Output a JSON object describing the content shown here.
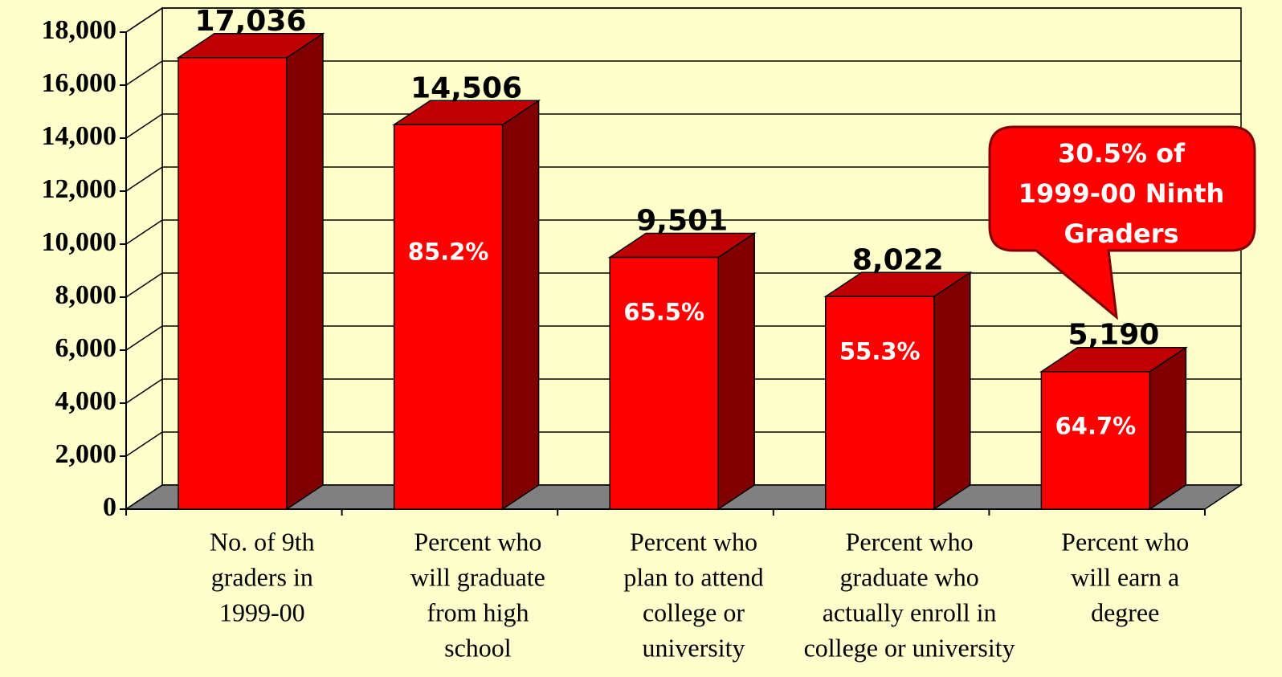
{
  "chart_data": {
    "type": "bar3d",
    "categories": [
      [
        "No. of 9th",
        "graders in",
        "1999-00"
      ],
      [
        "Percent who",
        "will graduate",
        "from high",
        "school"
      ],
      [
        "Percent who",
        "plan to attend",
        "college or",
        "university"
      ],
      [
        "Percent who",
        "graduate who",
        "actually enroll in",
        "college or university"
      ],
      [
        "Percent who",
        "will earn a",
        "degree"
      ]
    ],
    "values": [
      17036,
      14506,
      9501,
      8022,
      5190
    ],
    "value_labels": [
      "17,036",
      "14,506",
      "9,501",
      "8,022",
      "5,190"
    ],
    "rate_labels": [
      null,
      "85.2%",
      "65.5%",
      "55.3%",
      "64.7%"
    ],
    "color": "#ff0000",
    "ylim": [
      0,
      18000
    ],
    "yticks": [
      0,
      {
        "value": 2000,
        "label": "2,000"
      },
      {
        "value": 4000,
        "label": "4,000"
      },
      {
        "value": 6000,
        "label": "6,000"
      },
      {
        "value": 8000,
        "label": "8,000"
      },
      {
        "value": 10000,
        "label": "10,000"
      },
      {
        "value": 12000,
        "label": "12,000"
      },
      {
        "value": 14000,
        "label": "14,000"
      },
      {
        "value": 16000,
        "label": "16,000"
      },
      {
        "value": 18000,
        "label": "18,000"
      }
    ],
    "grid": true,
    "annotation": [
      "30.5% of",
      "1999-00 Ninth",
      "Graders"
    ]
  }
}
